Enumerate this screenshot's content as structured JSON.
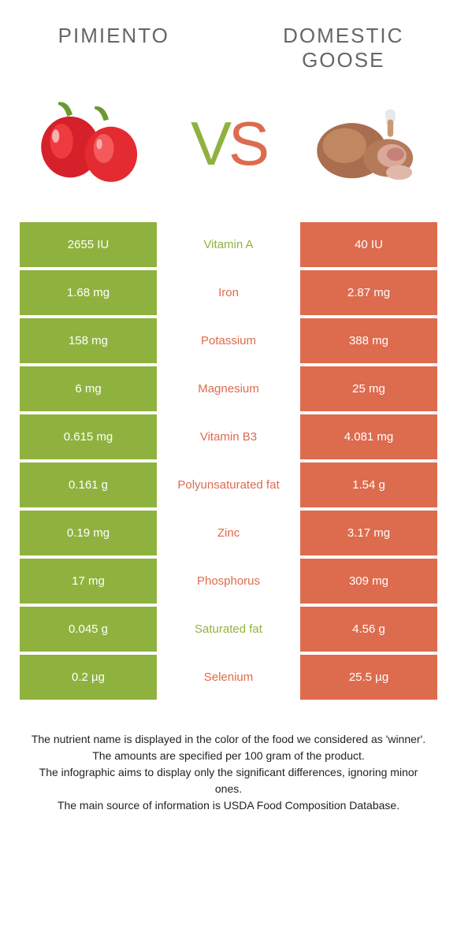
{
  "header": {
    "left_title": "PIMIENTO",
    "right_title": "DOMESTIC GOOSE",
    "vs_v": "V",
    "vs_s": "S"
  },
  "colors": {
    "green": "#8fb23f",
    "orange": "#dd6b4e",
    "bg": "#ffffff"
  },
  "rows": [
    {
      "left": "2655 IU",
      "label": "Vitamin A",
      "right": "40 IU",
      "winner": "left"
    },
    {
      "left": "1.68 mg",
      "label": "Iron",
      "right": "2.87 mg",
      "winner": "right"
    },
    {
      "left": "158 mg",
      "label": "Potassium",
      "right": "388 mg",
      "winner": "right"
    },
    {
      "left": "6 mg",
      "label": "Magnesium",
      "right": "25 mg",
      "winner": "right"
    },
    {
      "left": "0.615 mg",
      "label": "Vitamin B3",
      "right": "4.081 mg",
      "winner": "right"
    },
    {
      "left": "0.161 g",
      "label": "Polyunsaturated fat",
      "right": "1.54 g",
      "winner": "right"
    },
    {
      "left": "0.19 mg",
      "label": "Zinc",
      "right": "3.17 mg",
      "winner": "right"
    },
    {
      "left": "17 mg",
      "label": "Phosphorus",
      "right": "309 mg",
      "winner": "right"
    },
    {
      "left": "0.045 g",
      "label": "Saturated fat",
      "right": "4.56 g",
      "winner": "left"
    },
    {
      "left": "0.2 µg",
      "label": "Selenium",
      "right": "25.5 µg",
      "winner": "right"
    }
  ],
  "footnote": {
    "line1": "The nutrient name is displayed in the color of the food we considered as 'winner'.",
    "line2": "The amounts are specified per 100 gram of the product.",
    "line3": "The infographic aims to display only the significant differences, ignoring minor ones.",
    "line4": "The main source of information is USDA Food Composition Database."
  }
}
